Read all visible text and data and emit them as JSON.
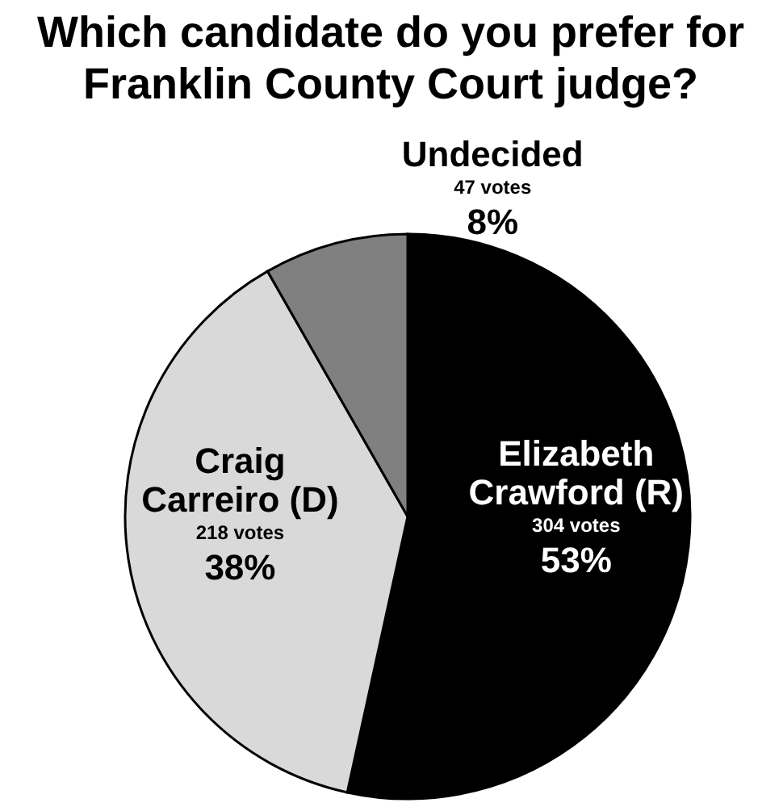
{
  "chart_data": {
    "type": "pie",
    "title": "Which candidate do you prefer for Franklin County Court judge?",
    "categories": [
      "Elizabeth Crawford (R)",
      "Craig Carreiro (D)",
      "Undecided"
    ],
    "values": [
      304,
      218,
      47
    ],
    "colors": [
      "#000000",
      "#d9d9d9",
      "#808080"
    ],
    "value_labels": [
      "304 votes",
      "218 votes",
      "47 votes"
    ],
    "annotations": [
      "53%",
      "38%",
      "8%"
    ]
  }
}
